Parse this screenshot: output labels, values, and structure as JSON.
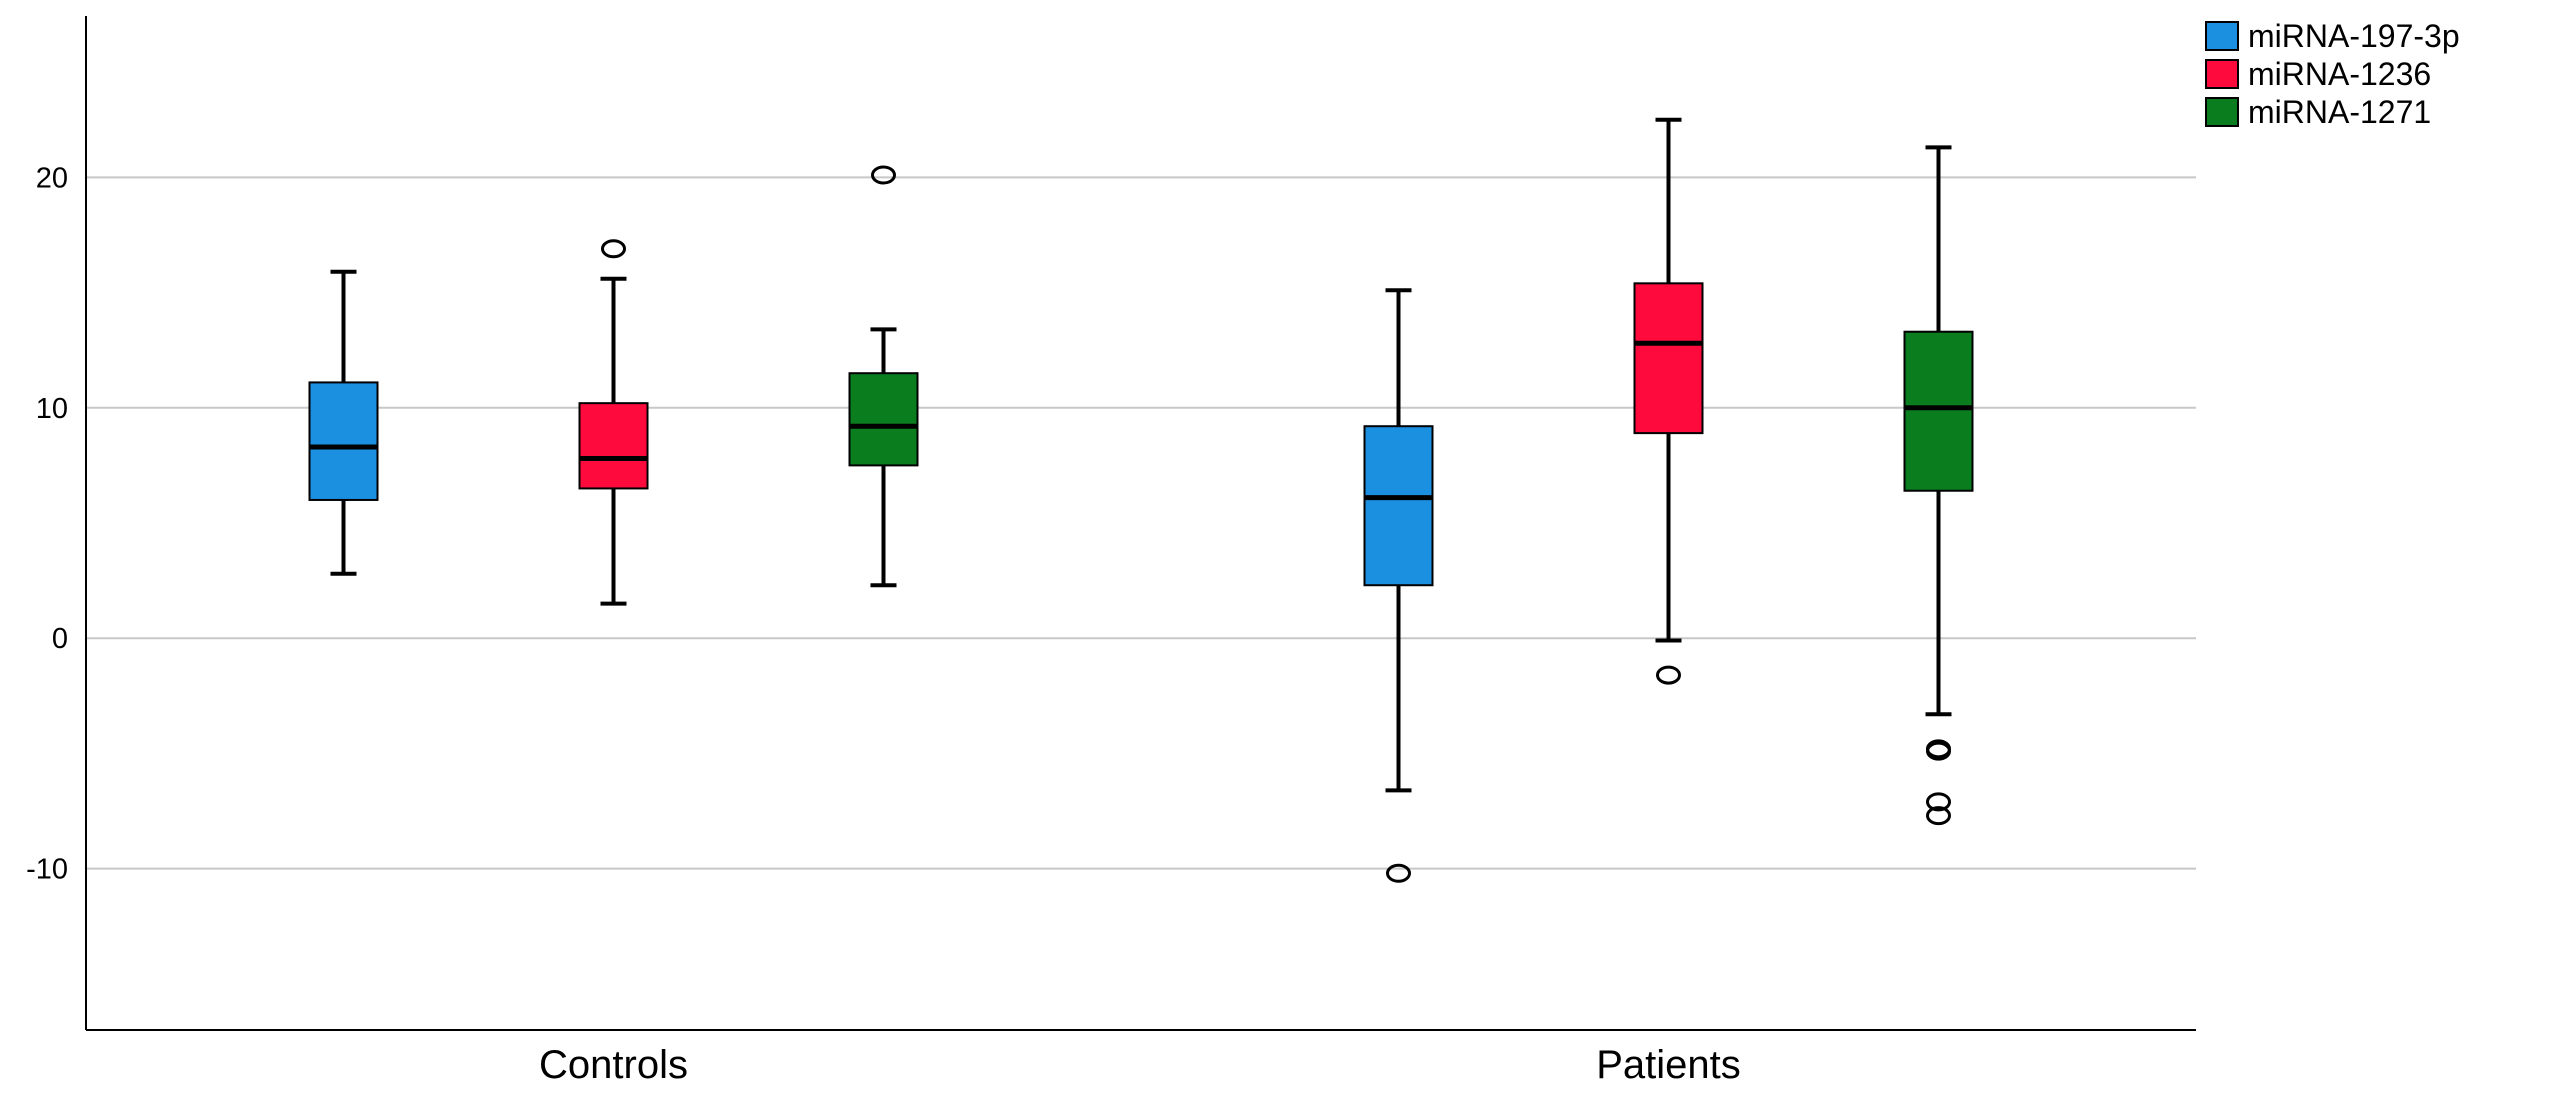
{
  "chart_data": {
    "type": "boxplot",
    "title": "",
    "xlabel": "",
    "ylabel": "",
    "ylim": [
      -17,
      27
    ],
    "y_ticks": [
      20,
      10,
      0,
      -10
    ],
    "y_tick_labels": [
      "20",
      "10",
      "0",
      "-10"
    ],
    "grid": true,
    "legend_position": "top-right",
    "categories": [
      "Controls",
      "Patients"
    ],
    "series": [
      {
        "name": "miRNA-197-3p",
        "color": "#1b8fe0",
        "boxes": [
          {
            "category": "Controls",
            "min": 2.8,
            "q1": 6.0,
            "median": 8.3,
            "q3": 11.1,
            "max": 15.9,
            "outliers": []
          },
          {
            "category": "Patients",
            "min": -6.6,
            "q1": 2.3,
            "median": 6.1,
            "q3": 9.2,
            "max": 15.1,
            "outliers": [
              -10.2
            ]
          }
        ]
      },
      {
        "name": "miRNA-1236",
        "color": "#ff0a3c",
        "boxes": [
          {
            "category": "Controls",
            "min": 1.5,
            "q1": 6.5,
            "median": 7.8,
            "q3": 10.2,
            "max": 15.6,
            "outliers": [
              16.9
            ]
          },
          {
            "category": "Patients",
            "min": -0.1,
            "q1": 8.9,
            "median": 12.8,
            "q3": 15.4,
            "max": 22.5,
            "outliers": [
              -1.6
            ]
          }
        ]
      },
      {
        "name": "miRNA-1271",
        "color": "#0a7d1e",
        "boxes": [
          {
            "category": "Controls",
            "min": 2.3,
            "q1": 7.5,
            "median": 9.2,
            "q3": 11.5,
            "max": 13.4,
            "outliers": [
              20.1
            ]
          },
          {
            "category": "Patients",
            "min": -3.3,
            "q1": 6.4,
            "median": 10.0,
            "q3": 13.3,
            "max": 21.3,
            "outliers": [
              -4.8,
              -4.9,
              -7.1,
              -7.7
            ]
          }
        ]
      }
    ]
  }
}
